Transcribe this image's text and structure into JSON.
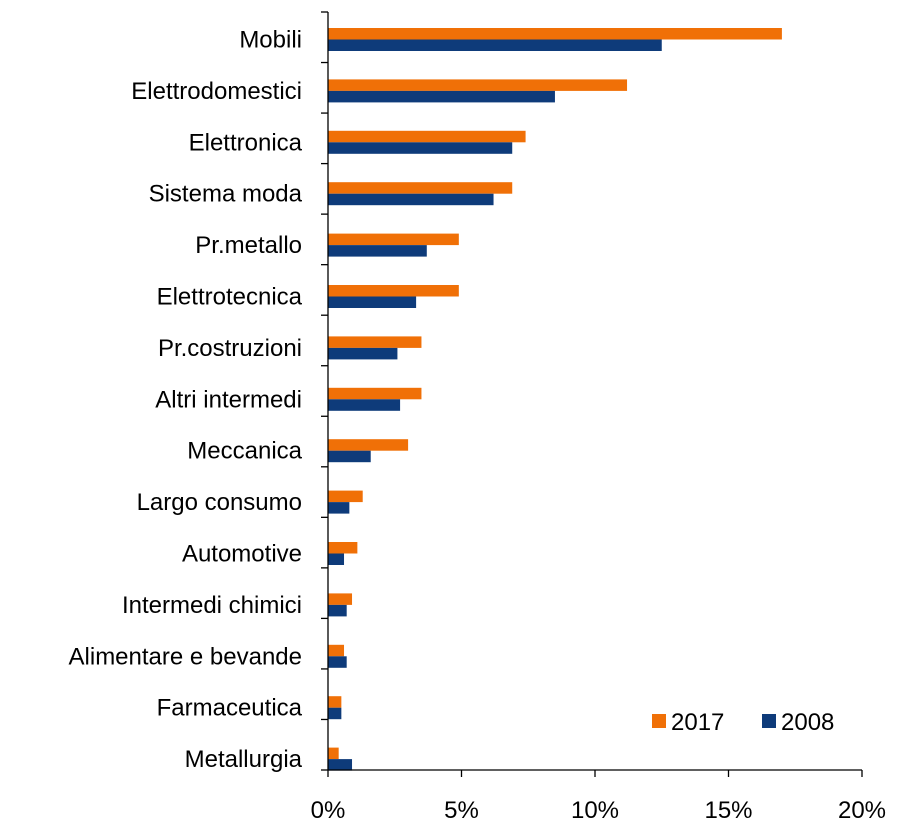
{
  "chart_data": {
    "type": "bar",
    "orientation": "horizontal",
    "title": "",
    "xlabel": "",
    "ylabel": "",
    "categories": [
      "Mobili",
      "Elettrodomestici",
      "Elettronica",
      "Sistema moda",
      "Pr.metallo",
      "Elettrotecnica",
      "Pr.costruzioni",
      "Altri intermedi",
      "Meccanica",
      "Largo consumo",
      "Automotive",
      "Intermedi chimici",
      "Alimentare e bevande",
      "Farmaceutica",
      "Metallurgia"
    ],
    "series": [
      {
        "name": "2017",
        "color": "#F07007",
        "values": [
          17.0,
          11.2,
          7.4,
          6.9,
          4.9,
          4.9,
          3.5,
          3.5,
          3.0,
          1.3,
          1.1,
          0.9,
          0.6,
          0.5,
          0.4
        ]
      },
      {
        "name": "2008",
        "color": "#0E3B7A",
        "values": [
          12.5,
          8.5,
          6.9,
          6.2,
          3.7,
          3.3,
          2.6,
          2.7,
          1.6,
          0.8,
          0.6,
          0.7,
          0.7,
          0.5,
          0.9
        ]
      }
    ],
    "xlim": [
      0,
      20
    ],
    "xticks": [
      0,
      5,
      10,
      15,
      20
    ],
    "xtick_labels": [
      "0%",
      "5%",
      "10%",
      "15%",
      "20%"
    ],
    "grid": false,
    "legend": {
      "placement": "bottom-right",
      "entries": [
        "2017",
        "2008"
      ]
    }
  }
}
